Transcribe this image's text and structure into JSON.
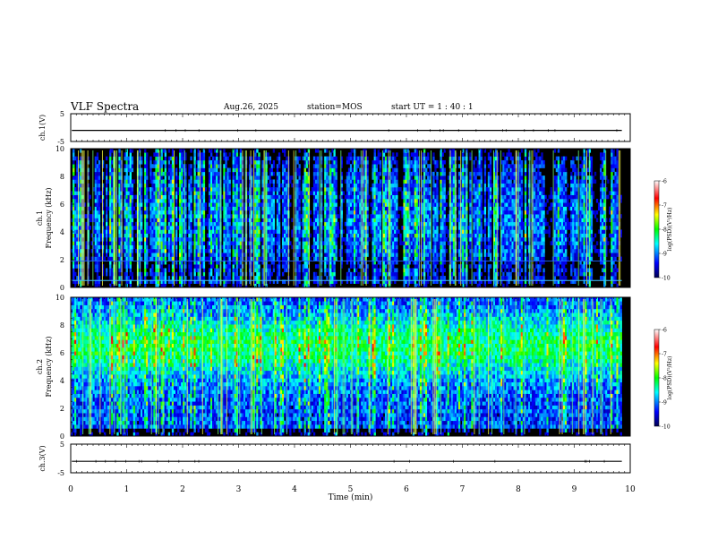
{
  "header": {
    "title": "VLF Spectra",
    "date": "Aug.26, 2025",
    "station": "station=MOS",
    "start": "start  UT =  1 : 40 : 1"
  },
  "chart_data": [
    {
      "type": "line",
      "panel": "ch1-waveform",
      "ylabel": "ch.1(V)",
      "ylim": [
        -5,
        5
      ],
      "yticks": [
        "5",
        "-5"
      ],
      "xlim": [
        0,
        10
      ],
      "baseline": -1
    },
    {
      "type": "heatmap",
      "panel": "ch1-spectrogram",
      "ylabel": "ch.1\nFrequency (kHz)",
      "ylim": [
        0,
        10
      ],
      "yticks": [
        "0",
        "2",
        "4",
        "6",
        "8",
        "10"
      ],
      "xlim": [
        0,
        10
      ],
      "colorbar": {
        "label": "log(PSD)(V²/Hz)",
        "range": [
          -10,
          -6
        ],
        "ticks": [
          "-6",
          "-7",
          "-8",
          "-9",
          "-10"
        ]
      }
    },
    {
      "type": "heatmap",
      "panel": "ch2-spectrogram",
      "ylabel": "ch.2\nFrequency (kHz)",
      "ylim": [
        0,
        10
      ],
      "yticks": [
        "0",
        "2",
        "4",
        "6",
        "8",
        "10"
      ],
      "xlim": [
        0,
        10
      ],
      "colorbar": {
        "label": "log(PSD)(V²/Hz)",
        "range": [
          -10,
          -6
        ],
        "ticks": [
          "-6",
          "-7",
          "-8",
          "-9",
          "-10"
        ]
      }
    },
    {
      "type": "line",
      "panel": "ch3-waveform",
      "ylabel": "ch.3(V)",
      "ylim": [
        -5,
        5
      ],
      "yticks": [
        "5",
        "-5"
      ],
      "xlim": [
        0,
        10
      ],
      "baseline": -1
    }
  ],
  "xaxis": {
    "label": "Time (min)",
    "ticks": [
      "0",
      "1",
      "2",
      "3",
      "4",
      "5",
      "6",
      "7",
      "8",
      "9",
      "10"
    ]
  },
  "colors": {
    "background": "#000000",
    "ink": "#000000"
  }
}
